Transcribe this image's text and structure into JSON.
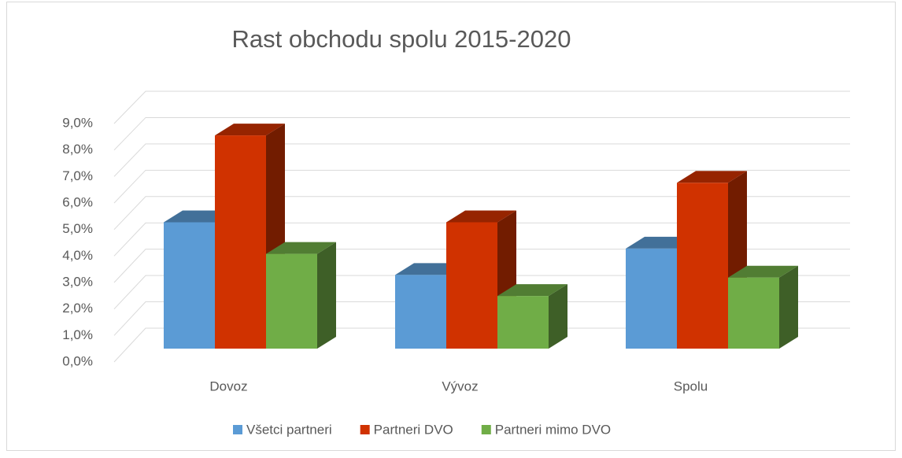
{
  "chart_data": {
    "type": "bar3d",
    "title": "Rast obchodu spolu 2015-2020",
    "categories": [
      "Dovoz",
      "Vývoz",
      "Spolu"
    ],
    "series": [
      {
        "name": "Všetci partneri",
        "color": "#5b9bd5",
        "values": [
          4.8,
          2.8,
          3.8
        ]
      },
      {
        "name": "Partneri DVO",
        "color": "#d03200",
        "values": [
          8.1,
          4.8,
          6.3
        ]
      },
      {
        "name": "Partneri mimo DVO",
        "color": "#70ad47",
        "values": [
          3.6,
          2.0,
          2.7
        ]
      }
    ],
    "ylim": [
      0,
      9
    ],
    "yticks": [
      {
        "value": 0,
        "label": "0,0%"
      },
      {
        "value": 1,
        "label": "1,0%"
      },
      {
        "value": 2,
        "label": "2,0%"
      },
      {
        "value": 3,
        "label": "3,0%"
      },
      {
        "value": 4,
        "label": "4,0%"
      },
      {
        "value": 5,
        "label": "5,0%"
      },
      {
        "value": 6,
        "label": "6,0%"
      },
      {
        "value": 7,
        "label": "7,0%"
      },
      {
        "value": 8,
        "label": "8,0%"
      },
      {
        "value": 9,
        "label": "9,0%"
      }
    ],
    "grid": true,
    "legend": "bottom"
  }
}
